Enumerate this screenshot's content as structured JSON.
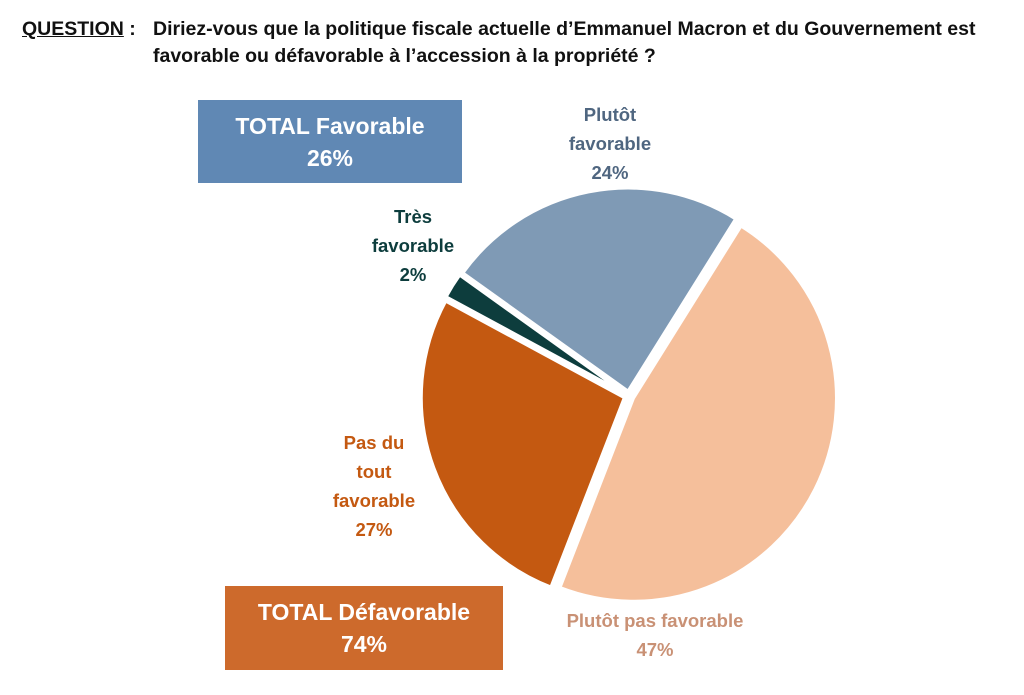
{
  "question": {
    "label": "QUESTION",
    "separator": " :",
    "text": "Diriez-vous que la politique fiscale actuelle d’Emmanuel Macron et du Gouvernement est favorable ou défavorable à l’accession à la propriété ?"
  },
  "totals": {
    "favorable": {
      "label": "TOTAL Favorable",
      "value": "26%",
      "color": "#6088b4"
    },
    "defavorable": {
      "label": "TOTAL Défavorable",
      "value": "74%",
      "color": "#cd6a2c"
    }
  },
  "chart_data": {
    "type": "pie",
    "title": "Diriez-vous que la politique fiscale actuelle d’Emmanuel Macron et du Gouvernement est favorable ou défavorable à l’accession à la propriété ?",
    "start_angle_deg": 32,
    "direction": "clockwise",
    "exploded": true,
    "slices": [
      {
        "label": "Plutôt pas favorable",
        "label_lines": [
          "Plutôt pas favorable",
          "47%"
        ],
        "value": 47,
        "color": "#f5bf9b",
        "text_color": "#c99175"
      },
      {
        "label": "Pas du tout favorable",
        "label_lines": [
          "Pas du",
          "tout",
          "favorable",
          "27%"
        ],
        "value": 27,
        "color": "#c45911",
        "text_color": "#c45911"
      },
      {
        "label": "Très favorable",
        "label_lines": [
          "Très",
          "favorable",
          "2%"
        ],
        "value": 2,
        "color": "#0d3d3d",
        "text_color": "#0d3d3d"
      },
      {
        "label": "Plutôt favorable",
        "label_lines": [
          "Plutôt",
          "favorable",
          "24%"
        ],
        "value": 24,
        "color": "#7f9ab5",
        "text_color": "#4f6680"
      }
    ]
  }
}
